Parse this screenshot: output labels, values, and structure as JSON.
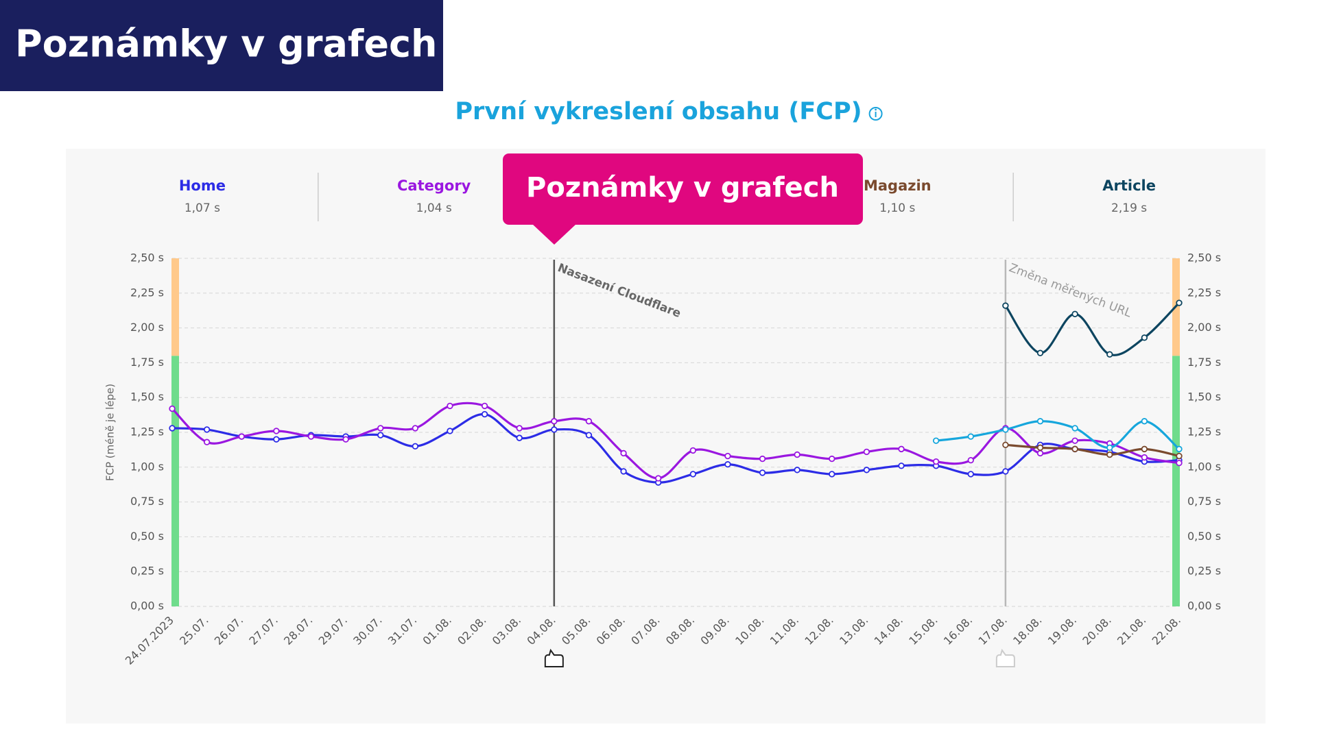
{
  "slide_title": "Poznámky v grafech",
  "callout": "Poznámky v grafech",
  "chart_data": {
    "type": "line",
    "title": "První vykreslení obsahu (FCP)",
    "y_label": "FCP (méně je lépe)",
    "categories": [
      "24.07.2023",
      "25.07.",
      "26.07.",
      "27.07.",
      "28.07.",
      "29.07.",
      "30.07.",
      "31.07.",
      "01.08.",
      "02.08.",
      "03.08.",
      "04.08.",
      "05.08.",
      "06.08.",
      "07.08.",
      "08.08.",
      "09.08.",
      "10.08.",
      "11.08.",
      "12.08.",
      "13.08.",
      "14.08.",
      "15.08.",
      "16.08.",
      "17.08.",
      "18.08.",
      "19.08.",
      "20.08.",
      "21.08.",
      "22.08."
    ],
    "series": [
      {
        "name": "Home",
        "summary": "1,07 s",
        "color": "#2c2ce6",
        "values": [
          1.28,
          1.27,
          1.22,
          1.2,
          1.23,
          1.22,
          1.23,
          1.15,
          1.26,
          1.38,
          1.21,
          1.27,
          1.23,
          0.97,
          0.89,
          0.95,
          1.02,
          0.96,
          0.98,
          0.95,
          0.98,
          1.01,
          1.01,
          0.95,
          0.97,
          1.16,
          1.13,
          1.11,
          1.04,
          1.05
        ]
      },
      {
        "name": "Category",
        "summary": "1,04 s",
        "color": "#9a17e0",
        "values": [
          1.42,
          1.18,
          1.22,
          1.26,
          1.22,
          1.2,
          1.28,
          1.28,
          1.44,
          1.44,
          1.28,
          1.33,
          1.33,
          1.1,
          0.92,
          1.12,
          1.08,
          1.06,
          1.09,
          1.06,
          1.11,
          1.13,
          1.04,
          1.05,
          1.28,
          1.1,
          1.19,
          1.17,
          1.07,
          1.03
        ]
      },
      {
        "color": "#16a6dc",
        "values": [
          null,
          null,
          null,
          null,
          null,
          null,
          null,
          null,
          null,
          null,
          null,
          null,
          null,
          null,
          null,
          null,
          null,
          null,
          null,
          null,
          null,
          null,
          1.19,
          1.22,
          1.27,
          1.33,
          1.28,
          1.14,
          1.33,
          1.13
        ]
      },
      {
        "name": "Magazin",
        "summary": "1,10 s",
        "color": "#7a4a2e",
        "values": [
          null,
          null,
          null,
          null,
          null,
          null,
          null,
          null,
          null,
          null,
          null,
          null,
          null,
          null,
          null,
          null,
          null,
          null,
          null,
          null,
          null,
          null,
          null,
          null,
          1.16,
          1.14,
          1.13,
          1.09,
          1.13,
          1.08
        ]
      },
      {
        "name": "Article",
        "summary": "2,19 s",
        "color": "#0d4560",
        "values": [
          null,
          null,
          null,
          null,
          null,
          null,
          null,
          null,
          null,
          null,
          null,
          null,
          null,
          null,
          null,
          null,
          null,
          null,
          null,
          null,
          null,
          null,
          null,
          null,
          2.16,
          1.82,
          2.1,
          1.81,
          1.93,
          2.18
        ]
      }
    ],
    "ylim": [
      0,
      2.5
    ],
    "yticks": [
      {
        "value": 0,
        "label": "0,00 s"
      },
      {
        "value": 0.25,
        "label": "0,25 s"
      },
      {
        "value": 0.5,
        "label": "0,50 s"
      },
      {
        "value": 0.75,
        "label": "0,75 s"
      },
      {
        "value": 1,
        "label": "1,00 s"
      },
      {
        "value": 1.25,
        "label": "1,25 s"
      },
      {
        "value": 1.5,
        "label": "1,50 s"
      },
      {
        "value": 1.75,
        "label": "1,75 s"
      },
      {
        "value": 2,
        "label": "2,00 s"
      },
      {
        "value": 2.25,
        "label": "2,25 s"
      },
      {
        "value": 2.5,
        "label": "2,50 s"
      }
    ],
    "grid": true,
    "bands": [
      {
        "from": 0,
        "to": 1.8,
        "color": "#6fdc8c"
      },
      {
        "from": 1.8,
        "to": 2.5,
        "color": "#ffc98b"
      }
    ],
    "annotations": [
      {
        "x": "04.08.",
        "text": "Nasazení Cloudflare",
        "color": "#555555"
      },
      {
        "x": "17.08.",
        "text": "Změna měřených URL",
        "color": "#b8b8b8"
      }
    ]
  }
}
